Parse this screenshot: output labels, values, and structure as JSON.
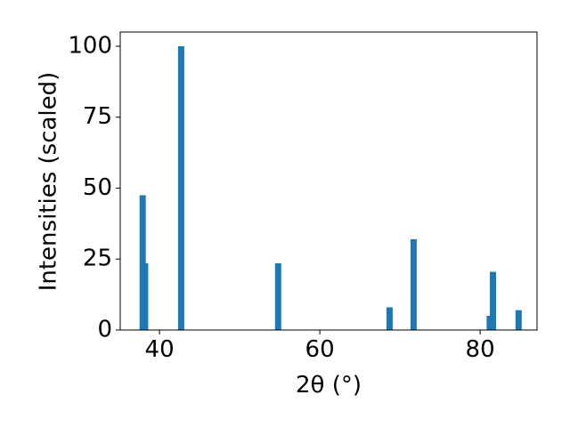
{
  "chart_data": {
    "type": "bar",
    "xlabel": "2θ (°)",
    "ylabel": "Intensities (scaled)",
    "x": [
      37.9,
      38.2,
      42.7,
      54.8,
      68.7,
      71.7,
      81.2,
      81.6,
      84.8
    ],
    "values": [
      47.5,
      23.5,
      100,
      23.5,
      8,
      32,
      5,
      20.5,
      7
    ],
    "color": "#1f77b4",
    "xlim": [
      35.1,
      87.1
    ],
    "xticks": [
      40,
      60,
      80
    ],
    "ylim": [
      0,
      105
    ],
    "yticks": [
      0,
      25,
      50,
      75,
      100
    ],
    "grid": false
  }
}
